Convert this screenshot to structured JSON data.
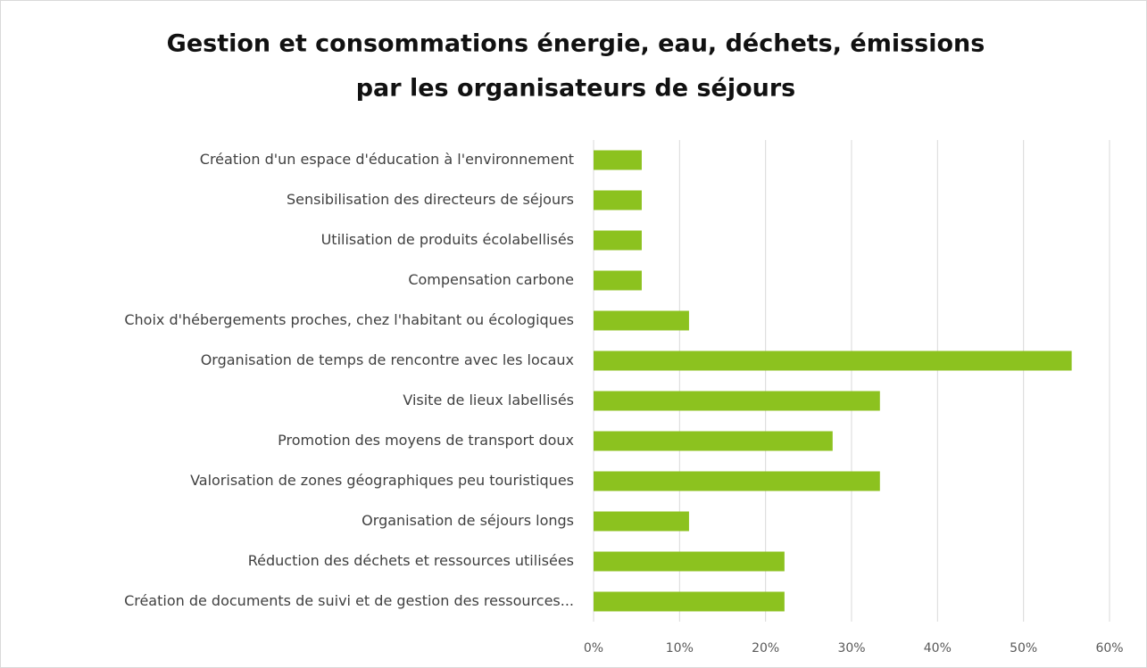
{
  "chart_data": {
    "type": "bar",
    "orientation": "horizontal",
    "title": [
      "Gestion et consommations  énergie, eau, déchets, émissions",
      "par les organisateurs de séjours"
    ],
    "categories": [
      "Création d'un espace d'éducation à l'environnement",
      "Sensibilisation des directeurs de séjours",
      "Utilisation de produits écolabellisés",
      "Compensation carbone",
      "Choix d'hébergements proches, chez l'habitant ou écologiques",
      "Organisation de temps de rencontre avec les locaux",
      "Visite de lieux labellisés",
      "Promotion des moyens de transport doux",
      "Valorisation de zones géographiques peu touristiques",
      "Organisation de séjours longs",
      "Réduction des déchets et ressources utilisées",
      "Création de documents de suivi et de gestion des ressources..."
    ],
    "values": [
      5.6,
      5.6,
      5.6,
      5.6,
      11.1,
      55.6,
      33.3,
      27.8,
      33.3,
      11.1,
      22.2,
      22.2
    ],
    "color": "#8cc21f",
    "xlim": [
      0,
      60
    ],
    "xticks": [
      {
        "value": 0,
        "label": "0%"
      },
      {
        "value": 10,
        "label": "10%"
      },
      {
        "value": 20,
        "label": "20%"
      },
      {
        "value": 30,
        "label": "30%"
      },
      {
        "value": 40,
        "label": "40%"
      },
      {
        "value": 50,
        "label": "50%"
      },
      {
        "value": 60,
        "label": "60%"
      }
    ],
    "grid": true
  }
}
